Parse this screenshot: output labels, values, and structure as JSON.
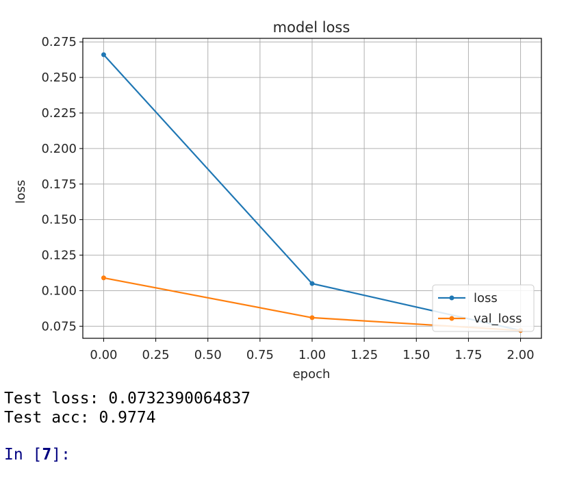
{
  "chart_data": {
    "type": "line",
    "title": "model loss",
    "xlabel": "epoch",
    "ylabel": "loss",
    "xlim": [
      -0.1,
      2.1
    ],
    "ylim": [
      0.0665,
      0.2775
    ],
    "xticks": [
      "0.00",
      "0.25",
      "0.50",
      "0.75",
      "1.00",
      "1.25",
      "1.50",
      "1.75",
      "2.00"
    ],
    "yticks": [
      "0.075",
      "0.100",
      "0.125",
      "0.150",
      "0.175",
      "0.200",
      "0.225",
      "0.250",
      "0.275"
    ],
    "grid": true,
    "legend_position": "lower right",
    "x": [
      0,
      1,
      2
    ],
    "series": [
      {
        "name": "loss",
        "values": [
          0.266,
          0.105,
          0.072
        ],
        "color": "#1f77b4"
      },
      {
        "name": "val_loss",
        "values": [
          0.109,
          0.081,
          0.072
        ],
        "color": "#ff7f0e"
      }
    ]
  },
  "output": {
    "line1": "Test loss: 0.0732390064837",
    "line2": "Test acc: 0.9774"
  },
  "prompt": {
    "label": "In [",
    "number": "7",
    "suffix": "]:"
  }
}
